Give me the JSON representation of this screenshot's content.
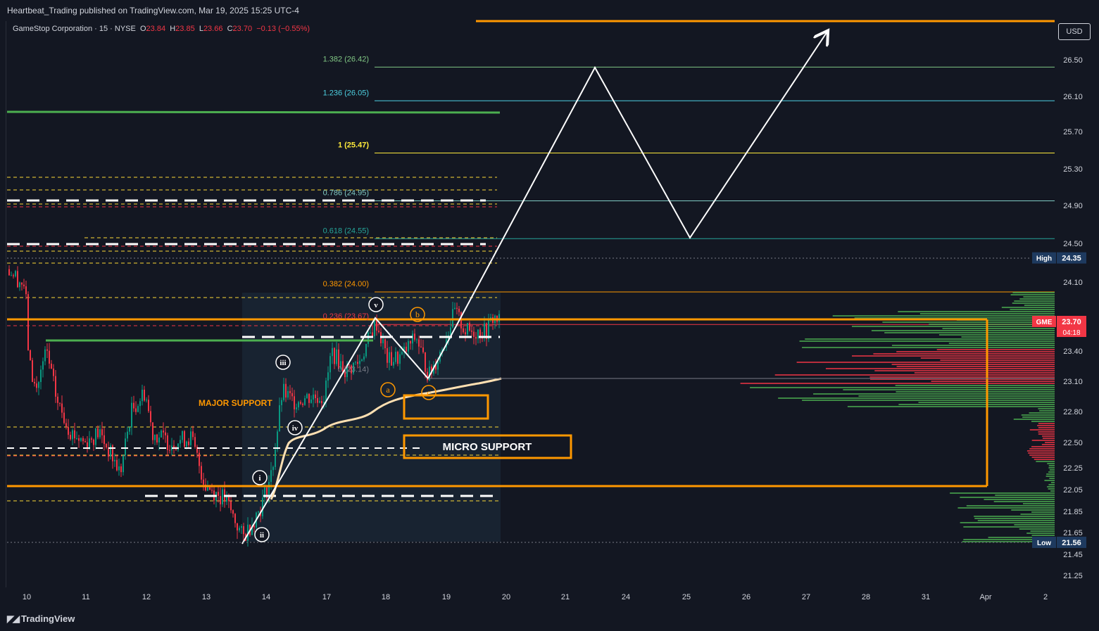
{
  "header": {
    "publisher": "Heartbeat_Trading published on TradingView.com, Mar 19, 2025 15:25 UTC-4"
  },
  "legend": {
    "symbol": "GameStop Corporation · 15 · NYSE",
    "o_label": "O",
    "o_value": "23.84",
    "h_label": "H",
    "h_value": "23.85",
    "l_label": "L",
    "l_value": "23.66",
    "c_label": "C",
    "c_value": "23.70",
    "change": "−0.13 (−0.55%)"
  },
  "currency": "USD",
  "footer": {
    "brand": "TradingView"
  },
  "colors": {
    "background": "#131722",
    "up": "#089981",
    "down": "#f23645",
    "orange": "#ff9800",
    "green_line": "#4caf50",
    "white": "#ffffff"
  },
  "chart_data": {
    "type": "candlestick",
    "symbol": "GME",
    "y_ticks": [
      "26.50",
      "26.10",
      "25.70",
      "25.30",
      "24.90",
      "24.50",
      "24.10",
      "23.40",
      "23.10",
      "22.80",
      "22.50",
      "22.25",
      "22.05",
      "21.85",
      "21.65",
      "21.45",
      "21.25"
    ],
    "x_ticks": [
      "10",
      "11",
      "12",
      "13",
      "14",
      "17",
      "18",
      "19",
      "20",
      "21",
      "24",
      "25",
      "26",
      "27",
      "28",
      "31",
      "Apr",
      "2"
    ],
    "price_labels": [
      {
        "label": "High",
        "value": "24.35"
      },
      {
        "label": "GME",
        "value": "23.70",
        "sub": "04:18"
      },
      {
        "label": "Low",
        "value": "21.56"
      }
    ],
    "fib_levels": [
      {
        "ratio": "1.382",
        "text": "1.382 (26.42)",
        "value": 26.42,
        "color": "#81c784"
      },
      {
        "ratio": "1.236",
        "text": "1.236 (26.05)",
        "value": 26.05,
        "color": "#4dd0e1"
      },
      {
        "ratio": "1",
        "text": "1 (25.47)",
        "value": 25.47,
        "color": "#ffeb3b"
      },
      {
        "ratio": "0.786",
        "text": "0.786 (24.95)",
        "value": 24.95,
        "color": "#80cbc4"
      },
      {
        "ratio": "0.618",
        "text": "0.618 (24.55)",
        "value": 24.55,
        "color": "#26a69a"
      },
      {
        "ratio": "0.382",
        "text": "0.382 (24.00)",
        "value": 24.0,
        "color": "#ff9800"
      },
      {
        "ratio": "0.236",
        "text": "0.236 (23.67)",
        "value": 23.67,
        "color": "#f23645"
      },
      {
        "ratio": "0",
        "text": "0 (23.14)",
        "value": 23.14,
        "color": "#787b86"
      }
    ],
    "annotations": {
      "major_support": "MAJOR SUPPORT",
      "micro_support": "MICRO SUPPORT",
      "waves": [
        "i",
        "ii",
        "iii",
        "iv",
        "v"
      ],
      "corrective": [
        "a",
        "b",
        "c"
      ]
    },
    "projection_path": [
      {
        "date": "Mar 13",
        "price": 21.56
      },
      {
        "date": "Mar 17",
        "price": 23.65
      },
      {
        "date": "Mar 18",
        "price": 23.14
      },
      {
        "date": "Mar 21",
        "price": 26.42
      },
      {
        "date": "Mar 25",
        "price": 24.55
      },
      {
        "date": "Mar 27",
        "price": 26.8
      }
    ],
    "price_range": [
      21.1,
      26.9
    ],
    "last_price": 23.7,
    "high": 24.35,
    "low": 21.56
  }
}
